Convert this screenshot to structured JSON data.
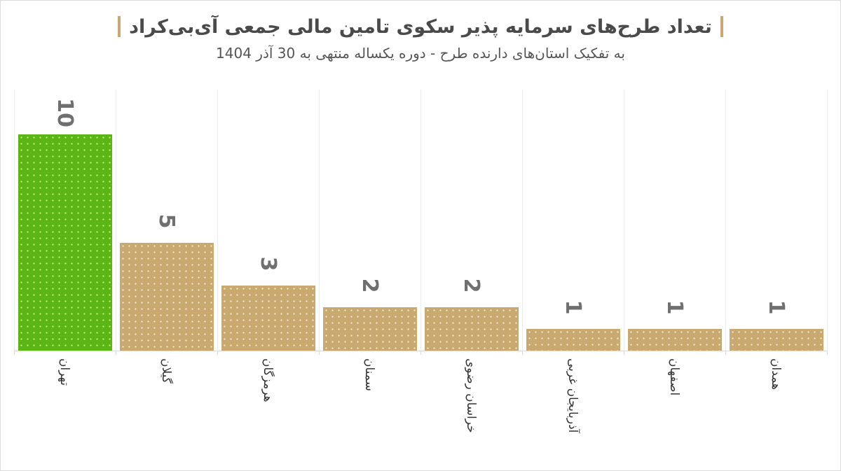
{
  "chart_data": {
    "type": "bar",
    "title": "تعداد طرح‌های سرمایه پذیر سکوی تامین مالی جمعی آی‌بی‌کراد",
    "subtitle": "به تفکیک استان‌های دارنده طرح - دوره یکساله منتهی به 30 آذر 1404",
    "xlabel": "",
    "ylabel": "",
    "categories": [
      "تهران",
      "گیلان",
      "هرمزگان",
      "سمنان",
      "خراسان رضوی",
      "آذربایجان غربی",
      "اصفهان",
      "همدان"
    ],
    "values": [
      10,
      5,
      3,
      2,
      2,
      1,
      1,
      1
    ],
    "value_labels": [
      "10",
      "5",
      "3",
      "2",
      "2",
      "1",
      "1",
      "1"
    ],
    "ylim": [
      0,
      12
    ],
    "grid": "vertical",
    "legend": "none",
    "colors": {
      "highlight": "#5cb516",
      "default": "#c9a96f",
      "accent_marker": "#c9a872",
      "label_text": "#6f6f6f"
    },
    "highlight_index": 0
  }
}
